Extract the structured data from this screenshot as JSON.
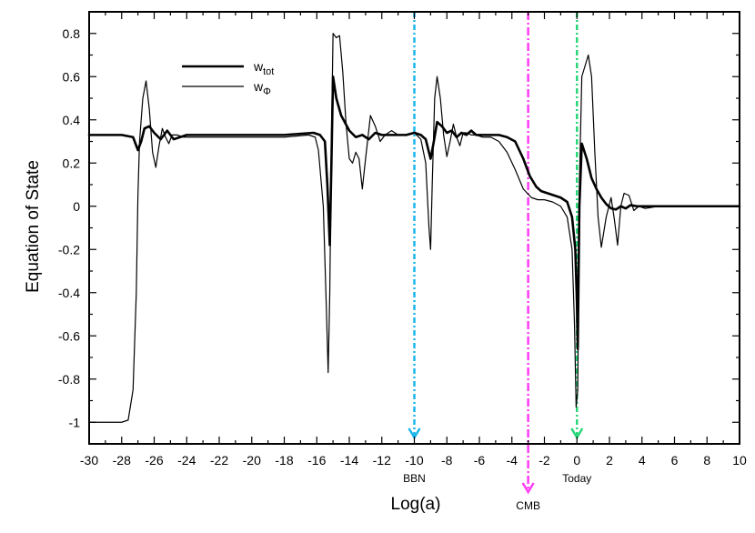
{
  "chart_data": {
    "type": "line",
    "title": "",
    "xlabel": "Log(a)",
    "ylabel": "Equation of State",
    "xlim": [
      -30,
      10
    ],
    "ylim": [
      -1.1,
      0.9
    ],
    "xticks": [
      -30,
      -28,
      -26,
      -24,
      -22,
      -20,
      -18,
      -16,
      -14,
      -12,
      -10,
      -8,
      -6,
      -4,
      -2,
      0,
      2,
      4,
      6,
      8,
      10
    ],
    "yticks": [
      -1,
      -0.8,
      -0.6,
      -0.4,
      -0.2,
      0,
      0.2,
      0.4,
      0.6,
      0.8
    ],
    "ytick_labels": [
      "-1",
      "-0.8",
      "-0.6",
      "-0.4",
      "-0.2",
      "0",
      "0.2",
      "0.4",
      "0.6",
      "0.8"
    ],
    "legend": {
      "position": "top-left",
      "entries": [
        {
          "main": "w",
          "sub": "tot",
          "style": "thick"
        },
        {
          "main": "w",
          "sub": "Φ",
          "style": "thin"
        }
      ]
    },
    "series": [
      {
        "name": "w_tot",
        "style": "thick",
        "x": [
          -30,
          -28,
          -27.3,
          -27,
          -26.8,
          -26.6,
          -26.3,
          -26,
          -25.6,
          -25.2,
          -24.8,
          -24,
          -22,
          -20,
          -18,
          -16.2,
          -15.8,
          -15.5,
          -15.35,
          -15.2,
          -15.1,
          -15.0,
          -14.8,
          -14.5,
          -14.0,
          -13.6,
          -13.2,
          -12.8,
          -12.4,
          -12,
          -11.5,
          -11,
          -10.5,
          -10,
          -9.6,
          -9.3,
          -9.1,
          -9.0,
          -8.8,
          -8.6,
          -8.3,
          -8,
          -7.7,
          -7.4,
          -7.1,
          -6.8,
          -6.5,
          -6.2,
          -5.8,
          -5.3,
          -4.8,
          -4.3,
          -3.8,
          -3.3,
          -2.9,
          -2.5,
          -2.2,
          -1.8,
          -1.4,
          -1,
          -0.6,
          -0.3,
          -0.1,
          0,
          0.05,
          0.15,
          0.3,
          0.6,
          0.9,
          1.2,
          1.5,
          1.8,
          2.1,
          2.4,
          2.7,
          3.0,
          3.3,
          3.7,
          4.2,
          5,
          6,
          7,
          8,
          9,
          10
        ],
        "y": [
          0.33,
          0.33,
          0.32,
          0.26,
          0.3,
          0.36,
          0.37,
          0.34,
          0.31,
          0.35,
          0.31,
          0.33,
          0.33,
          0.33,
          0.33,
          0.34,
          0.33,
          0.3,
          0.1,
          -0.18,
          0.2,
          0.6,
          0.5,
          0.42,
          0.35,
          0.32,
          0.33,
          0.31,
          0.34,
          0.33,
          0.33,
          0.33,
          0.33,
          0.34,
          0.33,
          0.31,
          0.25,
          0.22,
          0.3,
          0.39,
          0.37,
          0.34,
          0.35,
          0.32,
          0.34,
          0.33,
          0.35,
          0.33,
          0.33,
          0.33,
          0.33,
          0.32,
          0.3,
          0.22,
          0.14,
          0.09,
          0.07,
          0.06,
          0.05,
          0.04,
          0.02,
          -0.05,
          -0.2,
          -0.45,
          -0.66,
          0.0,
          0.29,
          0.22,
          0.13,
          0.08,
          0.04,
          0.01,
          -0.01,
          -0.015,
          0.0,
          -0.01,
          0.005,
          0.0,
          0.0,
          0.0,
          0.0,
          0.0,
          0.0,
          0.0,
          0.0
        ]
      },
      {
        "name": "w_Φ",
        "style": "thin",
        "x": [
          -30,
          -28,
          -27.6,
          -27.3,
          -27.1,
          -27.0,
          -26.9,
          -26.7,
          -26.5,
          -26.3,
          -26.1,
          -25.9,
          -25.7,
          -25.5,
          -25.3,
          -25.1,
          -24.9,
          -24.6,
          -24.2,
          -23.6,
          -22,
          -20,
          -18,
          -16.5,
          -16.1,
          -15.9,
          -15.6,
          -15.4,
          -15.3,
          -15.2,
          -15.1,
          -15.0,
          -14.8,
          -14.6,
          -14.4,
          -14.2,
          -14.0,
          -13.8,
          -13.6,
          -13.4,
          -13.2,
          -13.0,
          -12.7,
          -12.4,
          -12.1,
          -11.8,
          -11.4,
          -11.0,
          -10.5,
          -10.0,
          -9.6,
          -9.3,
          -9.1,
          -9.0,
          -8.9,
          -8.75,
          -8.6,
          -8.4,
          -8.2,
          -8.0,
          -7.8,
          -7.6,
          -7.4,
          -7.2,
          -7.0,
          -6.8,
          -6.5,
          -6.2,
          -5.8,
          -5.3,
          -4.8,
          -4.3,
          -3.8,
          -3.3,
          -2.8,
          -2.4,
          -2.0,
          -1.5,
          -1.0,
          -0.6,
          -0.3,
          -0.15,
          -0.05,
          0.05,
          0.15,
          0.3,
          0.5,
          0.7,
          0.9,
          1.1,
          1.3,
          1.5,
          1.8,
          2.1,
          2.3,
          2.5,
          2.7,
          2.9,
          3.2,
          3.5,
          3.8,
          4.2,
          5,
          6,
          7,
          8,
          9,
          10
        ],
        "y": [
          -1.0,
          -1.0,
          -0.99,
          -0.85,
          -0.4,
          0.05,
          0.3,
          0.5,
          0.58,
          0.45,
          0.25,
          0.18,
          0.28,
          0.36,
          0.32,
          0.29,
          0.33,
          0.33,
          0.32,
          0.32,
          0.32,
          0.32,
          0.32,
          0.33,
          0.32,
          0.26,
          0.0,
          -0.5,
          -0.77,
          -0.4,
          0.3,
          0.8,
          0.78,
          0.79,
          0.62,
          0.38,
          0.22,
          0.2,
          0.25,
          0.22,
          0.08,
          0.22,
          0.42,
          0.37,
          0.3,
          0.33,
          0.35,
          0.33,
          0.33,
          0.34,
          0.31,
          0.2,
          -0.1,
          -0.2,
          0.1,
          0.5,
          0.6,
          0.5,
          0.33,
          0.23,
          0.3,
          0.38,
          0.32,
          0.28,
          0.34,
          0.34,
          0.33,
          0.33,
          0.32,
          0.32,
          0.3,
          0.25,
          0.17,
          0.08,
          0.04,
          0.03,
          0.03,
          0.02,
          0.0,
          -0.05,
          -0.2,
          -0.55,
          -0.93,
          -0.85,
          0.1,
          0.6,
          0.65,
          0.7,
          0.6,
          0.25,
          -0.05,
          -0.19,
          -0.05,
          0.04,
          -0.06,
          -0.18,
          0.0,
          0.06,
          0.05,
          -0.02,
          0.0,
          -0.01,
          0.0,
          0.0,
          0.0,
          0.0,
          0.0,
          0.0
        ]
      }
    ],
    "markers": [
      {
        "label": "BBN",
        "x": -10,
        "color": "#1ab7ea"
      },
      {
        "label": "CMB",
        "x": -3,
        "color": "#ff3cf5"
      },
      {
        "label": "Today",
        "x": 0,
        "color": "#2ad67a"
      }
    ]
  }
}
